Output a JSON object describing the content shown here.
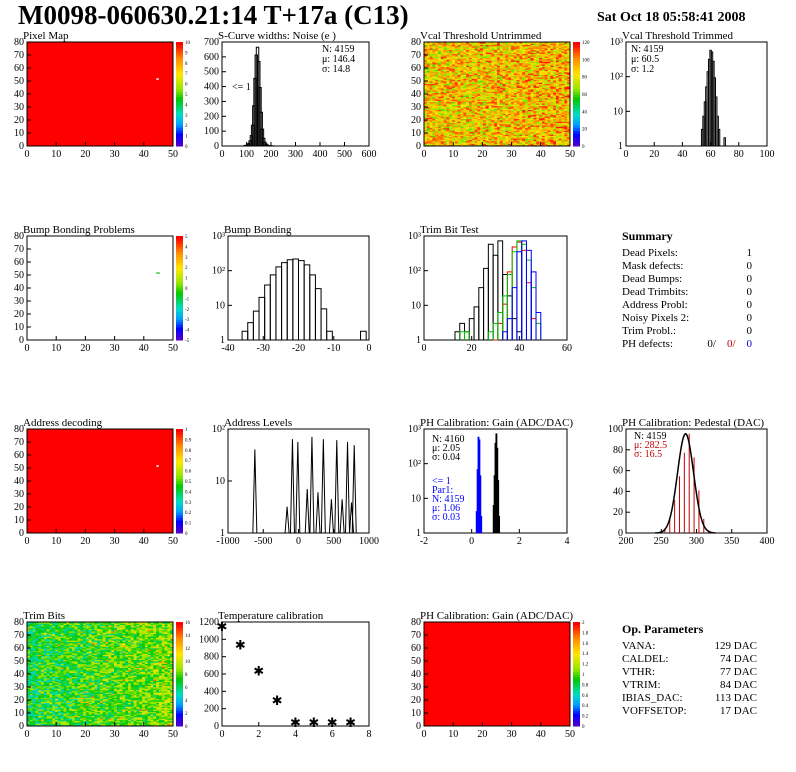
{
  "header": {
    "title": "M0098-060630.21:14 T+17a (C13)",
    "date": "Sat Oct 18 05:58:41 2008"
  },
  "colors": {
    "red": "#ff0000",
    "black": "#000000",
    "green": "#00c000",
    "blue": "#0000ff",
    "darkred": "#c00000"
  },
  "panels": {
    "pixel_map": {
      "title": "Pixel Map",
      "xticks": [
        "0",
        "10",
        "20",
        "30",
        "40",
        "50"
      ],
      "yticks": [
        "0",
        "10",
        "20",
        "30",
        "40",
        "50",
        "60",
        "70",
        "80"
      ],
      "zticks": [
        "0",
        "1",
        "2",
        "3",
        "4",
        "5",
        "6",
        "7",
        "8",
        "9",
        "10"
      ]
    },
    "scurve": {
      "title": "S-Curve widths: Noise (e )",
      "xticks": [
        "0",
        "100",
        "200",
        "300",
        "400",
        "500",
        "600"
      ],
      "yticks": [
        "0",
        "100",
        "200",
        "300",
        "400",
        "500",
        "600",
        "700"
      ],
      "stats": [
        "N: 4159",
        "μ: 146.4",
        "σ: 14.8"
      ],
      "underflow": "<= 1"
    },
    "vcal_untrimmed": {
      "title": "Vcal Threshold Untrimmed",
      "xticks": [
        "0",
        "10",
        "20",
        "30",
        "40",
        "50"
      ],
      "yticks": [
        "0",
        "10",
        "20",
        "30",
        "40",
        "50",
        "60",
        "70",
        "80"
      ],
      "zticks": [
        "0",
        "20",
        "40",
        "60",
        "80",
        "100",
        "120"
      ]
    },
    "vcal_trimmed": {
      "title": "Vcal Threshold Trimmed",
      "xticks": [
        "0",
        "20",
        "40",
        "60",
        "80",
        "100"
      ],
      "yticks": [
        "1",
        "10",
        "10²",
        "10³"
      ],
      "stats": [
        "N: 4159",
        "μ: 60.5",
        "σ:  1.2"
      ]
    },
    "bump_problems": {
      "title": "Bump Bonding Problems",
      "xticks": [
        "0",
        "10",
        "20",
        "30",
        "40",
        "50"
      ],
      "yticks": [
        "0",
        "10",
        "20",
        "30",
        "40",
        "50",
        "60",
        "70",
        "80"
      ],
      "zticks": [
        "-5",
        "-4",
        "-3",
        "-2",
        "-1",
        "0",
        "1",
        "2",
        "3",
        "4",
        "5"
      ]
    },
    "bump_bonding": {
      "title": "Bump Bonding",
      "xticks": [
        "-40",
        "-30",
        "-20",
        "-10",
        "0"
      ],
      "yticks": [
        "1",
        "10",
        "10²",
        "10³"
      ]
    },
    "trim_bit": {
      "title": "Trim Bit Test",
      "xticks": [
        "0",
        "20",
        "40",
        "60"
      ],
      "yticks": [
        "1",
        "10",
        "10²",
        "10³"
      ]
    },
    "address_decoding": {
      "title": "Address decoding",
      "xticks": [
        "0",
        "10",
        "20",
        "30",
        "40",
        "50"
      ],
      "yticks": [
        "0",
        "10",
        "20",
        "30",
        "40",
        "50",
        "60",
        "70",
        "80"
      ],
      "zticks": [
        "0",
        "0.1",
        "0.2",
        "0.3",
        "0.4",
        "0.5",
        "0.6",
        "0.7",
        "0.8",
        "0.9",
        "1"
      ]
    },
    "address_levels": {
      "title": "Address Levels",
      "xticks": [
        "-1000",
        "-500",
        "0",
        "500",
        "1000"
      ],
      "yticks": [
        "1",
        "10",
        "10²"
      ]
    },
    "ph_gain": {
      "title": "PH Calibration: Gain (ADC/DAC)",
      "xticks": [
        "-2",
        "0",
        "2",
        "4"
      ],
      "yticks": [
        "1",
        "10",
        "10²",
        "10³"
      ],
      "stats_black": [
        "N: 4160",
        "μ: 2.05",
        "σ: 0.04"
      ],
      "stats_blue": [
        "<= 1",
        "Par1:",
        "N: 4159",
        "μ: 1.06",
        "σ: 0.03"
      ]
    },
    "ph_pedestal": {
      "title": "PH Calibration: Pedestal (DAC)",
      "xticks": [
        "200",
        "250",
        "300",
        "350",
        "400"
      ],
      "yticks": [
        "0",
        "20",
        "40",
        "60",
        "80",
        "100"
      ],
      "stats_black": [
        "N: 4159"
      ],
      "stats_red": [
        "μ: 282.5",
        "σ: 16.5"
      ]
    },
    "trim_bits": {
      "title": "Trim Bits",
      "xticks": [
        "0",
        "10",
        "20",
        "30",
        "40",
        "50"
      ],
      "yticks": [
        "0",
        "10",
        "20",
        "30",
        "40",
        "50",
        "60",
        "70",
        "80"
      ],
      "zticks": [
        "0",
        "2",
        "4",
        "6",
        "8",
        "10",
        "12",
        "14",
        "16"
      ]
    },
    "temperature": {
      "title": "Temperature calibration",
      "xticks": [
        "0",
        "2",
        "4",
        "6",
        "8"
      ],
      "yticks": [
        "0",
        "200",
        "400",
        "600",
        "800",
        "1000",
        "1200"
      ]
    },
    "ph_gain_map": {
      "title": "PH Calibration: Gain (ADC/DAC)",
      "xticks": [
        "0",
        "10",
        "20",
        "30",
        "40",
        "50"
      ],
      "yticks": [
        "0",
        "10",
        "20",
        "30",
        "40",
        "50",
        "60",
        "70",
        "80"
      ],
      "zticks": [
        "0",
        "0.2",
        "0.4",
        "0.6",
        "0.8",
        "1",
        "1.2",
        "1.4",
        "1.6",
        "1.8",
        "2"
      ]
    }
  },
  "summary": {
    "title": "Summary",
    "rows": [
      {
        "label": "Dead Pixels:",
        "value": "1"
      },
      {
        "label": "Mask defects:",
        "value": "0"
      },
      {
        "label": "Dead Bumps:",
        "value": "0"
      },
      {
        "label": "Dead Trimbits:",
        "value": "0"
      },
      {
        "label": "Address Probl:",
        "value": "0"
      },
      {
        "label": "Noisy Pixels 2:",
        "value": "0"
      },
      {
        "label": "Trim Probl.:",
        "value": "0"
      }
    ],
    "ph_label": "PH defects:",
    "ph_values": [
      "0/",
      "0/",
      "0"
    ]
  },
  "op_params": {
    "title": "Op. Parameters",
    "rows": [
      {
        "label": "VANA:",
        "value": "129 DAC"
      },
      {
        "label": "CALDEL:",
        "value": "74 DAC"
      },
      {
        "label": "VTHR:",
        "value": "77 DAC"
      },
      {
        "label": "VTRIM:",
        "value": "84 DAC"
      },
      {
        "label": "IBIAS_DAC:",
        "value": "113 DAC"
      },
      {
        "label": "VOFFSETOP:",
        "value": "17 DAC"
      }
    ]
  },
  "chart_data": [
    {
      "type": "heatmap",
      "title": "Pixel Map",
      "xlim": [
        0,
        52
      ],
      "ylim": [
        0,
        80
      ],
      "zlim": [
        0,
        10
      ],
      "uniform_value": 10,
      "outliers": [
        {
          "x": 46,
          "y": 51,
          "value": 0
        }
      ]
    },
    {
      "type": "bar",
      "title": "S-Curve widths: Noise (e )",
      "xlim": [
        0,
        600
      ],
      "ylim": [
        0,
        800
      ],
      "x": [
        95,
        105,
        110,
        115,
        120,
        125,
        130,
        135,
        140,
        145,
        150,
        155,
        160,
        165,
        170,
        175,
        180,
        185,
        190,
        200,
        210
      ],
      "values": [
        5,
        10,
        20,
        40,
        80,
        160,
        310,
        520,
        700,
        760,
        650,
        450,
        260,
        130,
        60,
        30,
        15,
        8,
        4,
        2,
        1
      ]
    },
    {
      "type": "heatmap",
      "title": "Vcal Threshold Untrimmed",
      "xlim": [
        0,
        52
      ],
      "ylim": [
        0,
        80
      ],
      "zlim": [
        0,
        130
      ]
    },
    {
      "type": "bar",
      "title": "Vcal Threshold Trimmed",
      "xlim": [
        0,
        100
      ],
      "ylim_log": [
        0.5,
        3000
      ],
      "x": [
        54,
        55,
        56,
        57,
        58,
        59,
        60,
        61,
        62,
        63,
        64,
        65,
        66,
        70
      ],
      "values": [
        2,
        6,
        20,
        70,
        250,
        700,
        1500,
        1300,
        600,
        150,
        30,
        6,
        2,
        1
      ]
    },
    {
      "type": "heatmap",
      "title": "Bump Bonding Problems",
      "xlim": [
        0,
        52
      ],
      "ylim": [
        0,
        80
      ],
      "zlim": [
        -5,
        5
      ],
      "outliers": [
        {
          "x": 46,
          "y": 51,
          "value": 1
        }
      ]
    },
    {
      "type": "bar",
      "title": "Bump Bonding",
      "xlim": [
        -48,
        2
      ],
      "ylim_log": [
        0.5,
        2000
      ],
      "x": [
        -42,
        -40,
        -38,
        -36,
        -34,
        -32,
        -30,
        -28,
        -26,
        -24,
        -22,
        -20,
        -18,
        -16,
        -14,
        -12,
        0
      ],
      "values": [
        1,
        2,
        5,
        15,
        40,
        90,
        170,
        240,
        300,
        320,
        280,
        200,
        90,
        30,
        6,
        1,
        1
      ]
    },
    {
      "type": "line",
      "title": "Trim Bit Test",
      "xlim": [
        0,
        60
      ],
      "ylim_log": [
        0.5,
        3000
      ],
      "series": [
        {
          "name": "black",
          "x": [
            14,
            16,
            18,
            20,
            22,
            24,
            26,
            28,
            30,
            32,
            34,
            36,
            38,
            40,
            42,
            44
          ],
          "values": [
            1,
            2,
            1,
            3,
            8,
            40,
            200,
            1500,
            600,
            2000,
            120,
            20,
            3,
            1,
            0.5,
            0.5
          ]
        },
        {
          "name": "red",
          "x": [
            30,
            32,
            34,
            36,
            38,
            40,
            42,
            44,
            46
          ],
          "values": [
            0.5,
            2,
            10,
            150,
            1200,
            1800,
            900,
            60,
            3
          ]
        },
        {
          "name": "green",
          "x": [
            16,
            18,
            28,
            30,
            32,
            34,
            36,
            38,
            40,
            42,
            44,
            46,
            48
          ],
          "values": [
            1,
            1,
            1,
            2,
            5,
            20,
            120,
            800,
            2000,
            1500,
            400,
            40,
            2
          ]
        },
        {
          "name": "blue",
          "x": [
            34,
            36,
            38,
            40,
            42,
            44,
            46,
            48
          ],
          "values": [
            1,
            3,
            40,
            800,
            2000,
            900,
            150,
            5
          ]
        }
      ]
    },
    {
      "type": "heatmap",
      "title": "Address decoding",
      "xlim": [
        0,
        52
      ],
      "ylim": [
        0,
        80
      ],
      "zlim": [
        0,
        1
      ],
      "uniform_value": 1,
      "outliers": [
        {
          "x": 46,
          "y": 51,
          "value": 0
        }
      ]
    },
    {
      "type": "bar",
      "title": "Address Levels",
      "xlim": [
        -1100,
        1000
      ],
      "ylim_log": [
        0.5,
        600
      ],
      "x": [
        -700,
        -220,
        -140,
        -60,
        80,
        150,
        240,
        320,
        440,
        520,
        600,
        680,
        740,
        780
      ],
      "values": [
        150,
        3,
        300,
        250,
        10,
        350,
        8,
        300,
        5,
        280,
        5,
        250,
        4,
        200
      ]
    },
    {
      "type": "bar",
      "title": "PH Calibration: Gain (ADC/DAC)",
      "xlim": [
        -2,
        6
      ],
      "ylim_log": [
        0.5,
        3000
      ],
      "series": [
        {
          "name": "black",
          "x": [
            1.9,
            1.95,
            2.0,
            2.05,
            2.1,
            2.15,
            2.2
          ],
          "values": [
            5,
            60,
            900,
            2000,
            600,
            40,
            2
          ]
        },
        {
          "name": "blue",
          "x": [
            0.95,
            1.0,
            1.05,
            1.1,
            1.15,
            1.2
          ],
          "values": [
            3,
            100,
            1500,
            1200,
            60,
            2
          ]
        }
      ]
    },
    {
      "type": "bar",
      "title": "PH Calibration: Pedestal (DAC)",
      "xlim": [
        160,
        450
      ],
      "ylim": [
        0,
        110
      ],
      "x": [
        240,
        250,
        260,
        270,
        280,
        290,
        300,
        310,
        320,
        330
      ],
      "values": [
        5,
        15,
        35,
        60,
        85,
        105,
        80,
        45,
        15,
        3
      ],
      "fit": {
        "mean": 282.5,
        "sigma": 16.5
      }
    },
    {
      "type": "heatmap",
      "title": "Trim Bits",
      "xlim": [
        0,
        52
      ],
      "ylim": [
        0,
        80
      ],
      "zlim": [
        0,
        16
      ]
    },
    {
      "type": "scatter",
      "title": "Temperature calibration",
      "xlim": [
        0,
        8
      ],
      "ylim": [
        -50,
        1300
      ],
      "x": [
        0,
        1,
        2,
        3,
        4,
        5,
        6,
        7
      ],
      "values": [
        1250,
        1010,
        670,
        285,
        0,
        0,
        0,
        0
      ]
    },
    {
      "type": "heatmap",
      "title": "PH Calibration: Gain (ADC/DAC)",
      "xlim": [
        0,
        52
      ],
      "ylim": [
        0,
        80
      ],
      "zlim": [
        0,
        2
      ],
      "uniform_value": 2
    }
  ]
}
